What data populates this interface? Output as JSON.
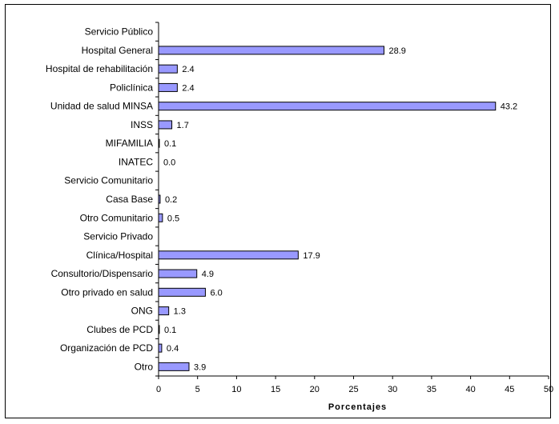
{
  "chart_data": {
    "type": "bar",
    "orientation": "horizontal",
    "title": "",
    "xlabel": "Porcentajes",
    "ylabel": "",
    "xlim": [
      0,
      50
    ],
    "x_ticks": [
      0,
      5,
      10,
      15,
      20,
      25,
      30,
      35,
      40,
      45,
      50
    ],
    "grid": false,
    "legend": "none",
    "bar_color": "#9999ff",
    "bar_edge_color": "#000000",
    "categories": [
      "Servicio Público",
      "Hospital General",
      "Hospital de rehabilitación",
      "Policlínica",
      "Unidad de salud MINSA",
      "INSS",
      "MIFAMILIA",
      "INATEC",
      "Servicio Comunitario",
      "Casa Base",
      "Otro Comunitario",
      "Servicio Privado",
      "Clínica/Hospital",
      "Consultorio/Dispensario",
      "Otro privado en salud",
      "ONG",
      "Clubes de PCD",
      "Organización de PCD",
      "Otro"
    ],
    "values": [
      null,
      28.9,
      2.4,
      2.4,
      43.2,
      1.7,
      0.1,
      0.0,
      null,
      0.2,
      0.5,
      null,
      17.9,
      4.9,
      6.0,
      1.3,
      0.1,
      0.4,
      3.9
    ],
    "data_labels": [
      "",
      "28.9",
      "2.4",
      "2.4",
      "43.2",
      "1.7",
      "0.1",
      "0.0",
      "",
      "0.2",
      "0.5",
      "",
      "17.9",
      "4.9",
      "6.0",
      "1.3",
      "0.1",
      "0.4",
      "3.9"
    ]
  }
}
